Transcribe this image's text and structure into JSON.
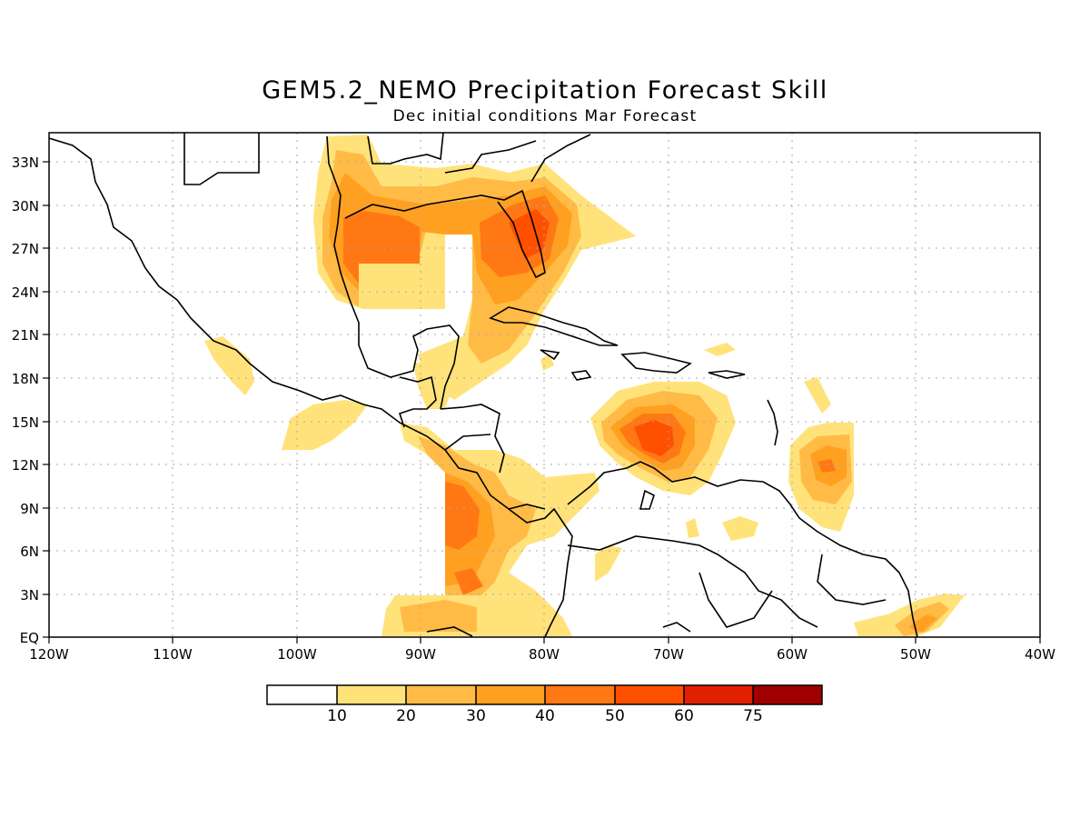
{
  "title": "GEM5.2_NEMO Precipitation Forecast Skill",
  "subtitle": "Dec initial conditions  Mar Forecast",
  "map": {
    "lon_range": [
      -120,
      -40
    ],
    "lat_range": [
      0,
      35
    ],
    "lon_labels": [
      "120W",
      "110W",
      "100W",
      "90W",
      "80W",
      "70W",
      "60W",
      "50W",
      "40W"
    ],
    "lat_labels": [
      "EQ",
      "3N",
      "6N",
      "9N",
      "12N",
      "15N",
      "18N",
      "21N",
      "24N",
      "27N",
      "30N",
      "33N"
    ]
  },
  "colorbar": {
    "labels": [
      "10",
      "20",
      "30",
      "40",
      "50",
      "60",
      "75"
    ],
    "colors": [
      "#ffffff",
      "#ffe27a",
      "#ffbb46",
      "#ffa020",
      "#ff7814",
      "#ff5000",
      "#e02000",
      "#a00000"
    ]
  }
}
